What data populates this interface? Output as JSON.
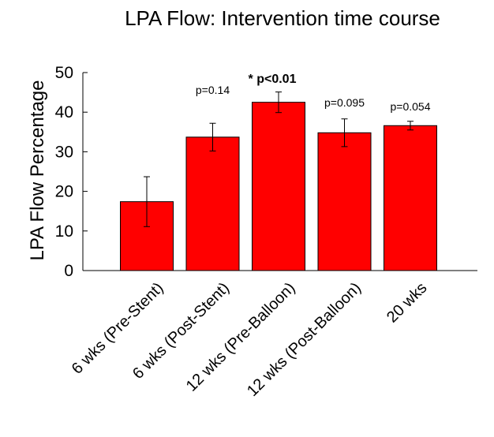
{
  "chart_data": {
    "type": "bar",
    "title": "LPA Flow: Intervention time course",
    "xlabel": "",
    "ylabel": "LPA Flow Percentage",
    "ylim": [
      0,
      50
    ],
    "yticks": [
      0,
      10,
      20,
      30,
      40,
      50
    ],
    "grid": false,
    "categories": [
      "6 wks (Pre-Stent)",
      "6 wks (Post-Stent)",
      "12 wks (Pre-Balloon)",
      "12 wks (Post-Balloon)",
      "20 wks"
    ],
    "values": [
      17.4,
      33.7,
      42.5,
      34.8,
      36.6
    ],
    "error": [
      6.3,
      3.5,
      2.6,
      3.5,
      1.1
    ],
    "annotations": [
      "",
      "p=0.14",
      "* p<0.01",
      "p=0.095",
      "p=0.054"
    ],
    "annotation_bold": [
      false,
      false,
      true,
      false,
      false
    ],
    "colors": {
      "bar": "#ff0000",
      "bar_edge": "#000000"
    }
  }
}
